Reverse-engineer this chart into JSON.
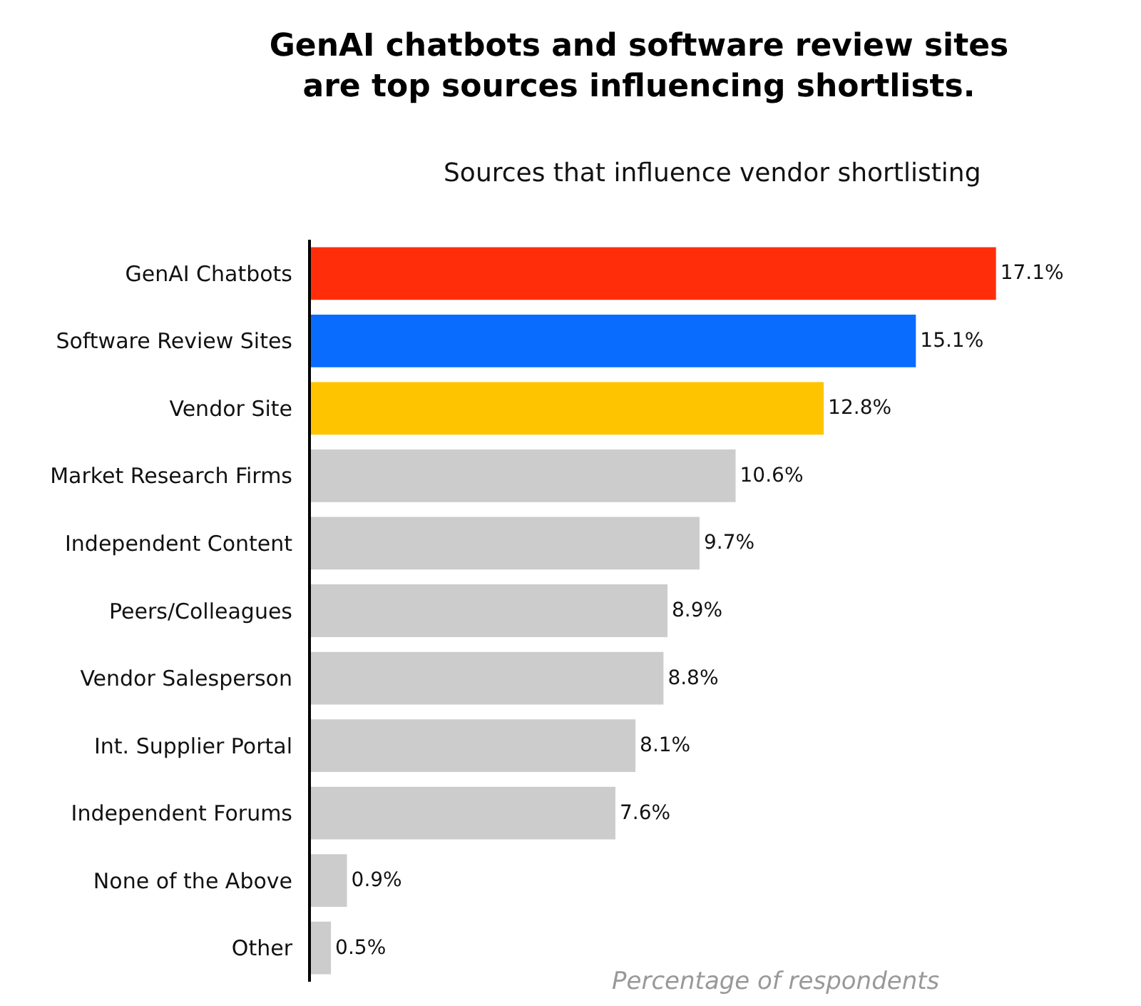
{
  "chart_data": {
    "type": "bar",
    "orientation": "horizontal",
    "title": "GenAI chatbots and software review sites\nare top sources influencing shortlists.",
    "subtitle": "Sources that influence vendor shortlisting",
    "xlabel": "Percentage of respondents",
    "categories": [
      "GenAI Chatbots",
      "Software Review Sites",
      "Vendor Site",
      "Market Research Firms",
      "Independent Content",
      "Peers/Colleagues",
      "Vendor Salesperson",
      "Int. Supplier Portal",
      "Independent Forums",
      "None of the Above",
      "Other"
    ],
    "values": [
      17.1,
      15.1,
      12.8,
      10.6,
      9.7,
      8.9,
      8.8,
      8.1,
      7.6,
      0.9,
      0.5
    ],
    "colors": [
      "#ff2d0a",
      "#0a6cff",
      "#ffc400",
      "#cccccc",
      "#cccccc",
      "#cccccc",
      "#cccccc",
      "#cccccc",
      "#cccccc",
      "#cccccc",
      "#cccccc"
    ],
    "value_labels": [
      "17.1%",
      "15.1%",
      "12.8%",
      "10.6%",
      "9.7%",
      "8.9%",
      "8.8%",
      "8.1%",
      "7.6%",
      "0.9%",
      "0.5%"
    ],
    "tick_labels": "y"
  }
}
